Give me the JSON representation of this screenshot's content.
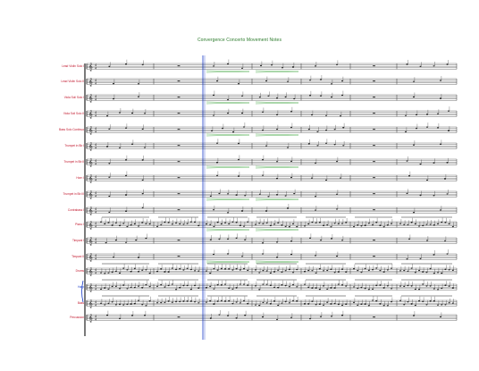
{
  "score": {
    "title": "Convergence Concerto Movement Notes",
    "accent_red": "#c0142a",
    "accent_blue": "#1a3cc8",
    "accent_green": "#2a9a2a",
    "staves": [
      {
        "label": "Lead Violin Solo I",
        "color": "red"
      },
      {
        "label": "Lead Violin Solo II",
        "color": "red"
      },
      {
        "label": "Viola Soli Solo I",
        "color": "red"
      },
      {
        "label": "Viola Soli Solo II",
        "color": "red"
      },
      {
        "label": "Bass Solo Continuo",
        "color": "red"
      },
      {
        "label": "Trumpet in Bb I",
        "color": "red"
      },
      {
        "label": "Trumpet in Bb II",
        "color": "red"
      },
      {
        "label": "Horn I",
        "color": "red"
      },
      {
        "label": "Trumpet in Bb III",
        "color": "red"
      },
      {
        "label": "Contrabass I",
        "color": "red"
      },
      {
        "label": "Piano I",
        "color": "red"
      },
      {
        "label": "Timpani I",
        "color": "red"
      },
      {
        "label": "Timpani II",
        "color": "red"
      },
      {
        "label": "Drums",
        "color": "red"
      },
      {
        "label": "Harp",
        "color": "blue"
      },
      {
        "label": "Bass",
        "color": "red"
      },
      {
        "label": "Percussion",
        "color": "red"
      }
    ]
  }
}
